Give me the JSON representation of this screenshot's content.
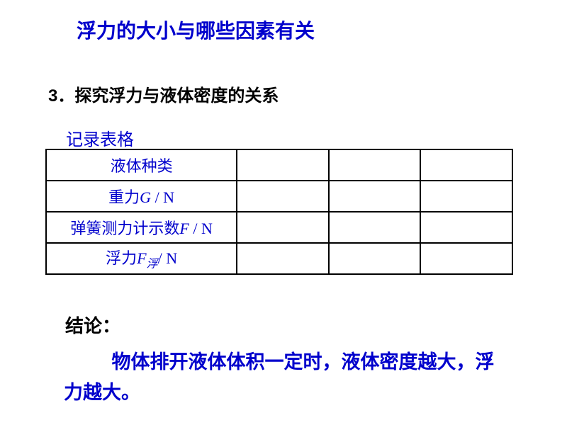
{
  "title": "浮力的大小与哪些因素有关",
  "subtitle": "3．探究浮力与液体密度的关系",
  "tableLabel": "记录表格",
  "table": {
    "rows": [
      {
        "label": "液体种类",
        "cells": [
          "",
          "",
          ""
        ]
      },
      {
        "label_pre": "重力",
        "label_var": "G",
        "label_post": " / N",
        "cells": [
          "",
          "",
          ""
        ]
      },
      {
        "label_pre": "弹簧测力计示数",
        "label_var": "F",
        "label_post": " / N",
        "cells": [
          "",
          "",
          ""
        ]
      },
      {
        "label_pre": "浮力",
        "label_var": "F",
        "label_sub": "浮",
        "label_post": "/ N",
        "cells": [
          "",
          "",
          ""
        ]
      }
    ],
    "columns": 3,
    "border_color": "#000000",
    "text_color": "#0000cc"
  },
  "conclusionLabel": "结论：",
  "conclusionText": "物体排开液体体积一定时，液体密度越大，浮力越大。",
  "colors": {
    "blue": "#0000cc",
    "black": "#000000",
    "background": "#ffffff"
  },
  "fonts": {
    "title_size": 28,
    "subtitle_size": 24,
    "table_size": 22,
    "conclusion_size": 27
  }
}
